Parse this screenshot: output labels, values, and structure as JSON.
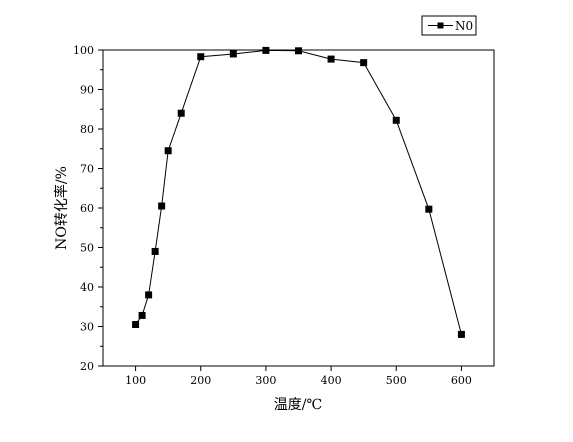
{
  "chart_data": {
    "type": "line",
    "title": "",
    "xlabel": "温度/℃",
    "ylabel": "NO转化率/%",
    "xlim": [
      50,
      650
    ],
    "ylim": [
      20,
      100
    ],
    "xticks": [
      100,
      200,
      300,
      400,
      500,
      600
    ],
    "yticks": [
      20,
      30,
      40,
      50,
      60,
      70,
      80,
      90,
      100
    ],
    "grid": false,
    "legend_position": "top-right",
    "series": [
      {
        "name": "N0",
        "marker": "square",
        "color": "#000000",
        "x": [
          100,
          110,
          120,
          130,
          140,
          150,
          170,
          200,
          250,
          300,
          350,
          400,
          450,
          500,
          550,
          600
        ],
        "y": [
          30.5,
          32.8,
          38,
          49,
          60.5,
          74.5,
          84,
          98.3,
          99,
          99.9,
          99.8,
          97.7,
          96.8,
          82.2,
          59.7,
          28
        ]
      }
    ]
  }
}
